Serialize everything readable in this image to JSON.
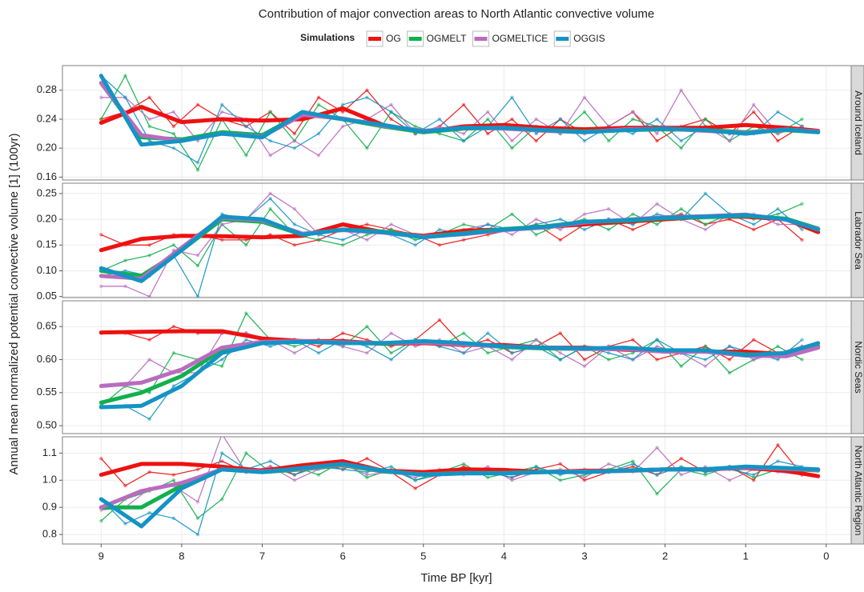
{
  "chart_data": {
    "type": "line",
    "title": "Contribution of major convection areas to North Atlantic convective volume",
    "legend_title": "Simulations",
    "xlabel": "Time BP [kyr]",
    "ylabel": "Annual mean normalized potential convective volume [1] (100yr)",
    "grid": true,
    "series": [
      {
        "name": "OG",
        "color": "#ee1111"
      },
      {
        "name": "OGMELT",
        "color": "#11b04c"
      },
      {
        "name": "OGMELTICE",
        "color": "#b96cbf"
      },
      {
        "name": "OGGIS",
        "color": "#1493c4"
      }
    ],
    "x": [
      9.0,
      8.7,
      8.4,
      8.1,
      7.8,
      7.5,
      7.2,
      6.9,
      6.6,
      6.3,
      6.0,
      5.7,
      5.4,
      5.1,
      4.8,
      4.5,
      4.2,
      3.9,
      3.6,
      3.3,
      3.0,
      2.7,
      2.4,
      2.1,
      1.8,
      1.5,
      1.2,
      0.9,
      0.6,
      0.3
    ],
    "smooth_x": [
      9.0,
      8.5,
      8.0,
      7.5,
      7.0,
      6.5,
      6.0,
      5.5,
      5.0,
      4.5,
      4.0,
      3.5,
      3.0,
      2.5,
      2.0,
      1.5,
      1.0,
      0.5,
      0.1
    ],
    "xlim": [
      9.48,
      -0.31
    ],
    "xticks": [
      9,
      8,
      7,
      6,
      5,
      4,
      3,
      2,
      1,
      0
    ],
    "panels": [
      {
        "strip": "Around Iceland",
        "ylim": [
          0.156,
          0.314
        ],
        "yticks": [
          0.16,
          {
            "value": 0.2,
            "label": "0.20"
          },
          0.24,
          0.28
        ],
        "values": [
          [
            0.24,
            0.25,
            0.27,
            0.23,
            0.26,
            0.24,
            0.23,
            0.25,
            0.22,
            0.27,
            0.25,
            0.28,
            0.24,
            0.22,
            0.23,
            0.26,
            0.22,
            0.24,
            0.21,
            0.24,
            0.22,
            0.23,
            0.25,
            0.21,
            0.23,
            0.24,
            0.22,
            0.25,
            0.21,
            0.23
          ],
          [
            0.24,
            0.3,
            0.23,
            0.22,
            0.17,
            0.24,
            0.19,
            0.25,
            0.21,
            0.26,
            0.24,
            0.2,
            0.25,
            0.23,
            0.22,
            0.21,
            0.24,
            0.2,
            0.23,
            0.22,
            0.25,
            0.21,
            0.24,
            0.23,
            0.2,
            0.24,
            0.21,
            0.23,
            0.22,
            0.24
          ],
          [
            0.27,
            0.27,
            0.24,
            0.25,
            0.21,
            0.25,
            0.24,
            0.19,
            0.21,
            0.19,
            0.23,
            0.24,
            0.26,
            0.22,
            0.23,
            0.22,
            0.25,
            0.21,
            0.24,
            0.22,
            0.27,
            0.23,
            0.25,
            0.22,
            0.28,
            0.23,
            0.21,
            0.26,
            0.22,
            0.23
          ],
          [
            0.3,
            0.27,
            0.21,
            0.2,
            0.18,
            0.26,
            0.23,
            0.21,
            0.2,
            0.22,
            0.26,
            0.27,
            0.25,
            0.22,
            0.24,
            0.21,
            0.23,
            0.27,
            0.22,
            0.24,
            0.21,
            0.23,
            0.22,
            0.24,
            0.21,
            0.23,
            0.22,
            0.22,
            0.25,
            0.23
          ]
        ],
        "smooth": [
          [
            0.235,
            0.257,
            0.236,
            0.24,
            0.238,
            0.24,
            0.255,
            0.232,
            0.222,
            0.23,
            0.232,
            0.228,
            0.226,
            0.228,
            0.228,
            0.228,
            0.232,
            0.228,
            0.224
          ],
          [
            0.29,
            0.215,
            0.212,
            0.222,
            0.218,
            0.248,
            0.24,
            0.23,
            0.222,
            0.227,
            0.228,
            0.225,
            0.223,
            0.225,
            0.226,
            0.225,
            0.222,
            0.225,
            0.222
          ],
          [
            0.29,
            0.218,
            0.21,
            0.22,
            0.216,
            0.246,
            0.241,
            0.231,
            0.224,
            0.228,
            0.227,
            0.224,
            0.222,
            0.226,
            0.227,
            0.224,
            0.221,
            0.226,
            0.223
          ],
          [
            0.3,
            0.205,
            0.21,
            0.22,
            0.215,
            0.25,
            0.24,
            0.232,
            0.223,
            0.228,
            0.228,
            0.225,
            0.222,
            0.225,
            0.227,
            0.225,
            0.22,
            0.226,
            0.222
          ]
        ]
      },
      {
        "strip": "Labrador Sea",
        "ylim": [
          0.048,
          0.27
        ],
        "yticks": [
          0.05,
          {
            "value": 0.1,
            "label": "0.10"
          },
          0.15,
          {
            "value": 0.2,
            "label": "0.20"
          },
          0.25
        ],
        "values": [
          [
            0.17,
            0.15,
            0.15,
            0.17,
            0.17,
            0.16,
            0.16,
            0.17,
            0.15,
            0.16,
            0.18,
            0.19,
            0.18,
            0.17,
            0.15,
            0.16,
            0.17,
            0.18,
            0.19,
            0.16,
            0.19,
            0.2,
            0.18,
            0.2,
            0.21,
            0.19,
            0.2,
            0.18,
            0.2,
            0.16
          ],
          [
            0.1,
            0.12,
            0.13,
            0.15,
            0.11,
            0.19,
            0.15,
            0.22,
            0.17,
            0.16,
            0.15,
            0.17,
            0.18,
            0.16,
            0.17,
            0.19,
            0.18,
            0.21,
            0.17,
            0.19,
            0.2,
            0.18,
            0.21,
            0.19,
            0.22,
            0.19,
            0.21,
            0.2,
            0.21,
            0.23
          ],
          [
            0.07,
            0.07,
            0.05,
            0.14,
            0.13,
            0.19,
            0.2,
            0.25,
            0.22,
            0.17,
            0.18,
            0.16,
            0.19,
            0.17,
            0.17,
            0.18,
            0.19,
            0.17,
            0.2,
            0.18,
            0.21,
            0.22,
            0.19,
            0.23,
            0.2,
            0.18,
            0.21,
            0.21,
            0.19,
            0.19
          ],
          [
            0.09,
            0.1,
            0.09,
            0.13,
            0.05,
            0.21,
            0.2,
            0.24,
            0.19,
            0.17,
            0.16,
            0.18,
            0.17,
            0.15,
            0.18,
            0.17,
            0.19,
            0.18,
            0.19,
            0.2,
            0.18,
            0.2,
            0.19,
            0.21,
            0.2,
            0.25,
            0.21,
            0.19,
            0.22,
            0.18
          ]
        ],
        "smooth": [
          [
            0.14,
            0.162,
            0.168,
            0.167,
            0.165,
            0.168,
            0.19,
            0.175,
            0.168,
            0.178,
            0.18,
            0.185,
            0.19,
            0.195,
            0.2,
            0.205,
            0.205,
            0.2,
            0.175
          ],
          [
            0.1,
            0.09,
            0.14,
            0.2,
            0.195,
            0.17,
            0.18,
            0.176,
            0.166,
            0.173,
            0.181,
            0.186,
            0.195,
            0.197,
            0.202,
            0.204,
            0.207,
            0.201,
            0.182
          ],
          [
            0.09,
            0.085,
            0.145,
            0.203,
            0.198,
            0.172,
            0.179,
            0.174,
            0.166,
            0.171,
            0.179,
            0.184,
            0.194,
            0.199,
            0.204,
            0.206,
            0.209,
            0.199,
            0.181
          ],
          [
            0.105,
            0.08,
            0.14,
            0.205,
            0.2,
            0.17,
            0.18,
            0.175,
            0.165,
            0.172,
            0.18,
            0.185,
            0.195,
            0.198,
            0.203,
            0.205,
            0.208,
            0.2,
            0.18
          ]
        ]
      },
      {
        "strip": "Nordic Seas",
        "ylim": [
          0.488,
          0.689
        ],
        "yticks": [
          {
            "value": 0.5,
            "label": "0.50"
          },
          0.55,
          {
            "value": 0.6,
            "label": "0.60"
          },
          0.65
        ],
        "values": [
          [
            0.64,
            0.64,
            0.63,
            0.65,
            0.64,
            0.64,
            0.64,
            0.63,
            0.63,
            0.62,
            0.64,
            0.63,
            0.62,
            0.63,
            0.66,
            0.62,
            0.63,
            0.61,
            0.62,
            0.64,
            0.6,
            0.62,
            0.63,
            0.6,
            0.61,
            0.62,
            0.6,
            0.63,
            0.61,
            0.62
          ],
          [
            0.53,
            0.56,
            0.55,
            0.61,
            0.6,
            0.59,
            0.67,
            0.63,
            0.62,
            0.63,
            0.62,
            0.65,
            0.61,
            0.63,
            0.62,
            0.64,
            0.61,
            0.62,
            0.63,
            0.6,
            0.62,
            0.6,
            0.61,
            0.63,
            0.59,
            0.62,
            0.58,
            0.6,
            0.62,
            0.6
          ],
          [
            0.56,
            0.56,
            0.6,
            0.58,
            0.58,
            0.64,
            0.64,
            0.63,
            0.61,
            0.63,
            0.62,
            0.61,
            0.64,
            0.62,
            0.63,
            0.61,
            0.62,
            0.6,
            0.63,
            0.61,
            0.59,
            0.62,
            0.6,
            0.62,
            0.61,
            0.59,
            0.62,
            0.6,
            0.61,
            0.62
          ],
          [
            0.53,
            0.53,
            0.51,
            0.56,
            0.58,
            0.6,
            0.63,
            0.62,
            0.63,
            0.61,
            0.63,
            0.62,
            0.6,
            0.63,
            0.62,
            0.61,
            0.64,
            0.61,
            0.62,
            0.6,
            0.62,
            0.61,
            0.6,
            0.63,
            0.61,
            0.6,
            0.62,
            0.61,
            0.6,
            0.63
          ]
        ],
        "smooth": [
          [
            0.641,
            0.642,
            0.643,
            0.643,
            0.632,
            0.628,
            0.628,
            0.624,
            0.625,
            0.622,
            0.622,
            0.618,
            0.618,
            0.615,
            0.613,
            0.612,
            0.612,
            0.608,
            0.62
          ],
          [
            0.535,
            0.55,
            0.575,
            0.615,
            0.626,
            0.627,
            0.626,
            0.624,
            0.627,
            0.624,
            0.619,
            0.617,
            0.616,
            0.617,
            0.613,
            0.613,
            0.608,
            0.607,
            0.62
          ],
          [
            0.56,
            0.565,
            0.585,
            0.618,
            0.627,
            0.628,
            0.626,
            0.625,
            0.626,
            0.623,
            0.62,
            0.618,
            0.616,
            0.616,
            0.612,
            0.612,
            0.606,
            0.605,
            0.618
          ],
          [
            0.528,
            0.53,
            0.56,
            0.61,
            0.625,
            0.627,
            0.625,
            0.625,
            0.628,
            0.625,
            0.62,
            0.618,
            0.617,
            0.618,
            0.614,
            0.614,
            0.607,
            0.61,
            0.625
          ]
        ]
      },
      {
        "strip": "North Atlantic Region",
        "ylim": [
          0.765,
          1.16
        ],
        "yticks": [
          0.8,
          0.9,
          {
            "value": 1.0,
            "label": "1.0"
          },
          1.1
        ],
        "values": [
          [
            1.08,
            0.98,
            1.03,
            1.02,
            1.04,
            1.07,
            1.03,
            1.05,
            1.02,
            1.06,
            1.04,
            1.08,
            1.03,
            0.97,
            1.02,
            1.05,
            1.03,
            1.01,
            1.04,
            1.06,
            1.0,
            1.03,
            1.05,
            1.02,
            1.08,
            1.03,
            1.05,
            1.0,
            1.13,
            1.02
          ],
          [
            0.85,
            0.93,
            0.96,
            1.0,
            0.86,
            0.93,
            1.1,
            1.03,
            1.05,
            1.02,
            1.07,
            1.01,
            1.04,
            1.0,
            1.03,
            1.06,
            1.01,
            1.03,
            1.05,
            1.0,
            1.02,
            1.04,
            1.07,
            0.95,
            1.04,
            1.02,
            1.05,
            1.01,
            1.04,
            1.03
          ],
          [
            0.89,
            0.9,
            0.97,
            0.98,
            0.92,
            1.17,
            1.03,
            1.05,
            1.0,
            1.04,
            1.06,
            1.02,
            1.03,
            1.01,
            1.04,
            1.02,
            1.05,
            1.0,
            1.03,
            1.04,
            1.01,
            1.06,
            1.03,
            1.12,
            1.02,
            1.05,
            1.0,
            1.04,
            1.03,
            1.02
          ],
          [
            0.93,
            0.84,
            0.88,
            0.86,
            0.8,
            1.1,
            1.04,
            1.07,
            1.02,
            1.05,
            1.04,
            1.03,
            1.05,
            1.0,
            1.02,
            1.04,
            1.03,
            1.01,
            1.05,
            1.02,
            1.04,
            1.03,
            1.06,
            1.02,
            1.05,
            1.03,
            1.04,
            1.02,
            1.07,
            1.05
          ]
        ],
        "smooth": [
          [
            1.02,
            1.06,
            1.06,
            1.05,
            1.035,
            1.055,
            1.07,
            1.035,
            1.03,
            1.04,
            1.038,
            1.03,
            1.035,
            1.035,
            1.04,
            1.04,
            1.045,
            1.035,
            1.015
          ],
          [
            0.9,
            0.9,
            0.98,
            1.04,
            1.03,
            1.04,
            1.055,
            1.032,
            1.022,
            1.027,
            1.027,
            1.031,
            1.031,
            1.036,
            1.04,
            1.041,
            1.048,
            1.042,
            1.036
          ],
          [
            0.9,
            0.96,
            0.99,
            1.04,
            1.032,
            1.042,
            1.058,
            1.034,
            1.021,
            1.026,
            1.026,
            1.03,
            1.032,
            1.034,
            1.039,
            1.04,
            1.047,
            1.043,
            1.038
          ],
          [
            0.93,
            0.83,
            0.97,
            1.04,
            1.03,
            1.045,
            1.06,
            1.035,
            1.02,
            1.025,
            1.025,
            1.03,
            1.03,
            1.035,
            1.04,
            1.04,
            1.05,
            1.045,
            1.04
          ]
        ]
      }
    ]
  }
}
